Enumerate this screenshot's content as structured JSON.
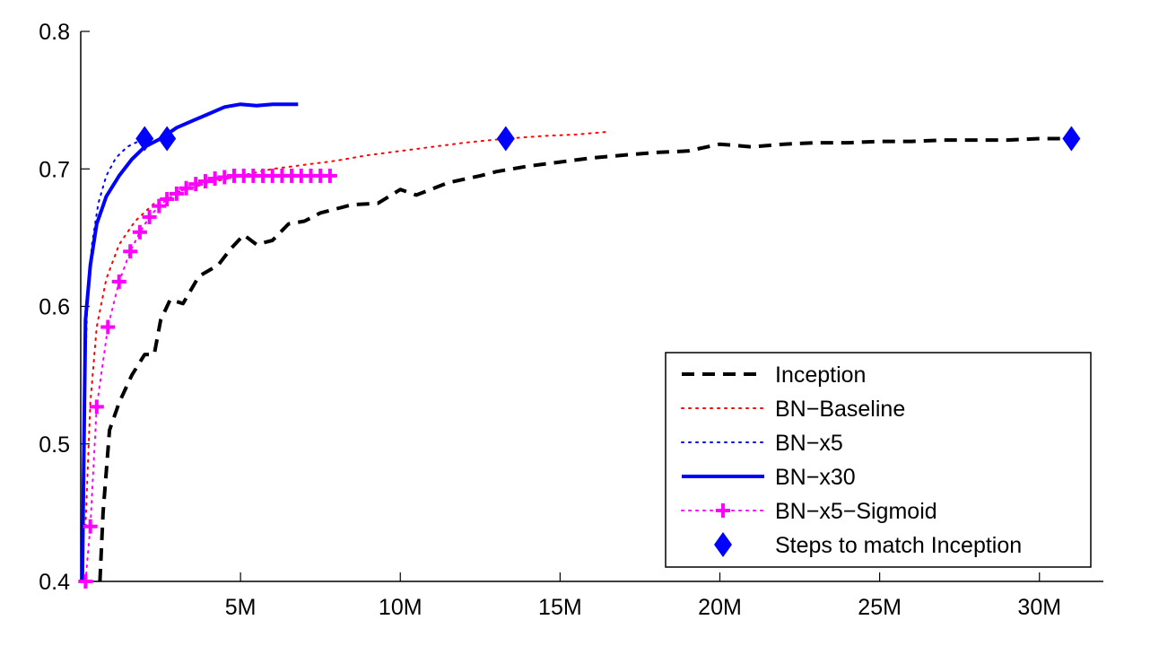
{
  "chart_data": {
    "type": "line",
    "title": "",
    "xlabel": "",
    "ylabel": "",
    "xlim": [
      0,
      32000000
    ],
    "ylim": [
      0.4,
      0.8
    ],
    "xticks": [
      5000000,
      10000000,
      15000000,
      20000000,
      25000000,
      30000000
    ],
    "xtick_labels": [
      "5M",
      "10M",
      "15M",
      "20M",
      "25M",
      "30M"
    ],
    "yticks": [
      0.4,
      0.5,
      0.6,
      0.7,
      0.8
    ],
    "ytick_labels": [
      "0.4",
      "0.5",
      "0.6",
      "0.7",
      "0.8"
    ],
    "grid": false,
    "legend_position": "bottom-right",
    "series": [
      {
        "name": "Inception",
        "style": "dashed",
        "color": "#000000",
        "marker": "",
        "points": [
          [
            600000,
            0.4
          ],
          [
            700000,
            0.45
          ],
          [
            900000,
            0.51
          ],
          [
            1200000,
            0.53
          ],
          [
            1600000,
            0.55
          ],
          [
            2000000,
            0.565
          ],
          [
            2300000,
            0.565
          ],
          [
            2500000,
            0.59
          ],
          [
            2800000,
            0.605
          ],
          [
            3200000,
            0.602
          ],
          [
            3700000,
            0.622
          ],
          [
            4300000,
            0.63
          ],
          [
            4700000,
            0.642
          ],
          [
            5100000,
            0.652
          ],
          [
            5500000,
            0.645
          ],
          [
            6000000,
            0.648
          ],
          [
            6500000,
            0.66
          ],
          [
            7000000,
            0.662
          ],
          [
            7500000,
            0.668
          ],
          [
            8500000,
            0.674
          ],
          [
            9300000,
            0.675
          ],
          [
            10000000,
            0.685
          ],
          [
            10500000,
            0.681
          ],
          [
            11500000,
            0.69
          ],
          [
            12500000,
            0.695
          ],
          [
            13000000,
            0.698
          ],
          [
            14000000,
            0.702
          ],
          [
            15000000,
            0.705
          ],
          [
            16000000,
            0.708
          ],
          [
            17000000,
            0.71
          ],
          [
            18000000,
            0.712
          ],
          [
            19000000,
            0.713
          ],
          [
            20000000,
            0.718
          ],
          [
            21000000,
            0.716
          ],
          [
            22000000,
            0.718
          ],
          [
            23000000,
            0.719
          ],
          [
            24000000,
            0.719
          ],
          [
            25000000,
            0.72
          ],
          [
            26000000,
            0.72
          ],
          [
            27000000,
            0.721
          ],
          [
            28000000,
            0.721
          ],
          [
            29000000,
            0.721
          ],
          [
            30000000,
            0.722
          ],
          [
            31000000,
            0.722
          ]
        ]
      },
      {
        "name": "BN−Baseline",
        "style": "dotted",
        "color": "#ff0000",
        "marker": "",
        "points": [
          [
            150000,
            0.44
          ],
          [
            300000,
            0.53
          ],
          [
            500000,
            0.585
          ],
          [
            800000,
            0.62
          ],
          [
            1200000,
            0.645
          ],
          [
            1700000,
            0.662
          ],
          [
            2300000,
            0.675
          ],
          [
            3000000,
            0.683
          ],
          [
            4000000,
            0.69
          ],
          [
            5000000,
            0.695
          ],
          [
            6000000,
            0.7
          ],
          [
            7000000,
            0.703
          ],
          [
            8000000,
            0.706
          ],
          [
            9000000,
            0.71
          ],
          [
            10000000,
            0.713
          ],
          [
            11000000,
            0.716
          ],
          [
            12000000,
            0.719
          ],
          [
            13300000,
            0.722
          ],
          [
            14500000,
            0.724
          ],
          [
            15500000,
            0.725
          ],
          [
            16500000,
            0.727
          ]
        ]
      },
      {
        "name": "BN−x5",
        "style": "dotted",
        "color": "#0000ff",
        "marker": "",
        "points": [
          [
            30000,
            0.4
          ],
          [
            100000,
            0.52
          ],
          [
            200000,
            0.6
          ],
          [
            350000,
            0.645
          ],
          [
            550000,
            0.675
          ],
          [
            800000,
            0.695
          ],
          [
            1100000,
            0.708
          ],
          [
            1450000,
            0.716
          ],
          [
            1800000,
            0.72
          ],
          [
            2000000,
            0.722
          ]
        ]
      },
      {
        "name": "BN−x30",
        "style": "solid",
        "color": "#0000ff",
        "marker": "",
        "points": [
          [
            50000,
            0.4
          ],
          [
            100000,
            0.5
          ],
          [
            150000,
            0.59
          ],
          [
            300000,
            0.63
          ],
          [
            500000,
            0.66
          ],
          [
            800000,
            0.68
          ],
          [
            1200000,
            0.695
          ],
          [
            1600000,
            0.707
          ],
          [
            2000000,
            0.716
          ],
          [
            2500000,
            0.722
          ],
          [
            3000000,
            0.73
          ],
          [
            3500000,
            0.735
          ],
          [
            4000000,
            0.74
          ],
          [
            4500000,
            0.745
          ],
          [
            5000000,
            0.747
          ],
          [
            5500000,
            0.746
          ],
          [
            6000000,
            0.747
          ],
          [
            6800000,
            0.747
          ]
        ]
      },
      {
        "name": "BN−x5−Sigmoid",
        "style": "dotted",
        "color": "#ff00ff",
        "marker": "plus",
        "points": [
          [
            150000,
            0.4
          ],
          [
            300000,
            0.44
          ],
          [
            500000,
            0.527
          ],
          [
            850000,
            0.585
          ],
          [
            1200000,
            0.618
          ],
          [
            1550000,
            0.64
          ],
          [
            1850000,
            0.654
          ],
          [
            2150000,
            0.665
          ],
          [
            2450000,
            0.673
          ],
          [
            2700000,
            0.678
          ],
          [
            3000000,
            0.682
          ],
          [
            3300000,
            0.686
          ],
          [
            3600000,
            0.689
          ],
          [
            3900000,
            0.691
          ],
          [
            4200000,
            0.693
          ],
          [
            4500000,
            0.694
          ],
          [
            4800000,
            0.695
          ],
          [
            5100000,
            0.695
          ],
          [
            5400000,
            0.695
          ],
          [
            5700000,
            0.695
          ],
          [
            6000000,
            0.695
          ],
          [
            6300000,
            0.695
          ],
          [
            6600000,
            0.695
          ],
          [
            6900000,
            0.695
          ],
          [
            7200000,
            0.695
          ],
          [
            7500000,
            0.695
          ],
          [
            7800000,
            0.695
          ]
        ]
      },
      {
        "name": "Steps to match Inception",
        "style": "none",
        "color": "#0000ff",
        "marker": "diamond",
        "points": [
          [
            2000000,
            0.722
          ],
          [
            2700000,
            0.722
          ],
          [
            13300000,
            0.722
          ],
          [
            31000000,
            0.722
          ]
        ]
      }
    ]
  }
}
